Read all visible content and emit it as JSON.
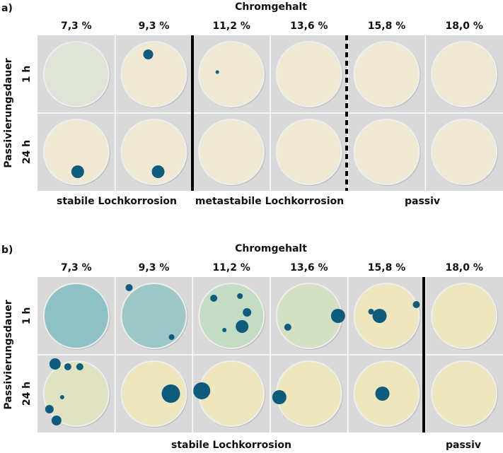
{
  "panels": [
    {
      "label": "a)",
      "header": "Chromgehalt",
      "columns": [
        "7,3 %",
        "9,3 %",
        "11,2 %",
        "13,6 %",
        "15,8 %",
        "18,0 %"
      ],
      "axis_label": "Passivierungsdauer",
      "rows": [
        "1 h",
        "24 h"
      ],
      "footer": [
        "stabile Lochkorrosion",
        "metastabile Lochkorrosion",
        "passiv"
      ]
    },
    {
      "label": "b)",
      "header": "Chromgehalt",
      "columns": [
        "7,3 %",
        "9,3 %",
        "11,2 %",
        "13,6 %",
        "15,8 %",
        "18,0 %"
      ],
      "axis_label": "Passivierungsdauer",
      "rows": [
        "1 h",
        "24 h"
      ],
      "footer": [
        "stabile Lochkorrosion",
        "passiv"
      ]
    }
  ]
}
